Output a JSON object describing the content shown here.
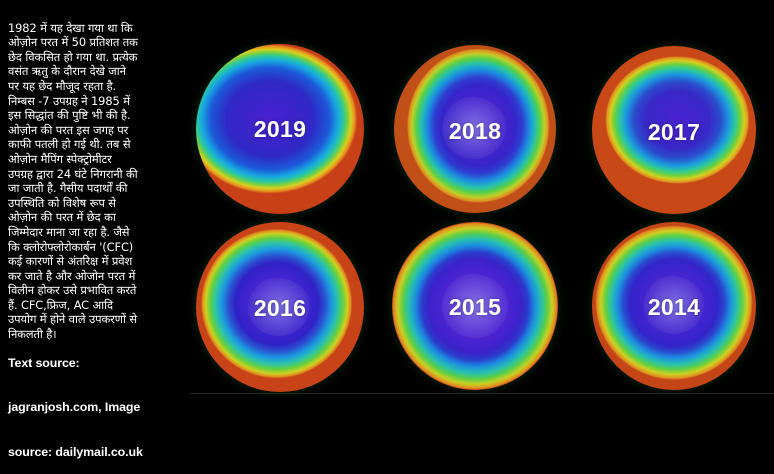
{
  "caption": {
    "body": "1982 में यह देखा गया था कि\nओज़ोन परत में 50 प्रतिशत तक\nछेद विकसित हो गया था. प्रत्येक\nवसंत ऋतु के दौरान देखे जाने\nपर यह छेद मौजूद रहता है.\nनिम्बस -7 उपग्रह ने 1985 में\nइस सिद्धांत की पुष्टि भी की है.\nओज़ोन की परत इस जगह पर\nकाफी पतली हो गई थी. तब से\nओज़ोन मैपिंग स्पेक्ट्रोमीटर\nउपग्रह द्वारा 24 घंटे निगरानी की\nजा जाती है. गैसीय पदार्थों की\nउपस्थिति को विशेष रूप से\nओज़ोन की परत में छेद का\nजिम्मेदार माना जा रहा है. जैसे\nकि क्लोरोफ्लोरोकार्बन  '(CFC)\nकई कारणों  से अंतरिक्ष में प्रवेश\nकर जाते है और ओजोन परत में\nविलीन होकर उसे प्रभावित करते\nहैं. CFC,फ्रिज, AC आदि\nउपयोग में होने वाले उपकरणों  से\nनिकलती है।",
    "source_1": "Text source:",
    "source_2": "jagranjosh.com, Image",
    "source_3": "source:  dailymail.co.uk"
  },
  "globes": [
    {
      "year": "2019"
    },
    {
      "year": "2018"
    },
    {
      "year": "2017"
    },
    {
      "year": "2016"
    },
    {
      "year": "2015"
    },
    {
      "year": "2014"
    }
  ],
  "colors": {
    "background": "#000000",
    "text": "#ffffff",
    "ozone_low": "#3a18c8",
    "ozone_mid": "#1aa0e0",
    "ozone_high": "#e8d020",
    "ozone_edge": "#d04018"
  }
}
